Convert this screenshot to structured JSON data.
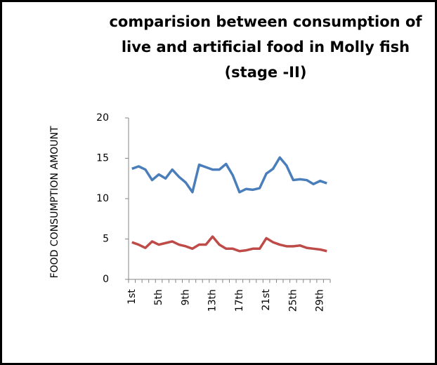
{
  "chart_data": {
    "type": "line",
    "title": "comparision between consumption of live and artificial food in Molly fish (stage -II)",
    "y_label": "FOOD CONSUMPTION AMOUNT",
    "categories": [
      "1st",
      null,
      null,
      null,
      "5th",
      null,
      null,
      null,
      "9th",
      null,
      null,
      null,
      "13th",
      null,
      null,
      null,
      "17th",
      null,
      null,
      null,
      "21st",
      null,
      null,
      null,
      "25th",
      null,
      null,
      null,
      "29th",
      null
    ],
    "series": [
      {
        "color": "#4a7ebb",
        "values": [
          13.7,
          14,
          13.6,
          12.3,
          13,
          12.5,
          13.6,
          12.7,
          12,
          10.8,
          14.2,
          13.9,
          13.6,
          13.6,
          14.3,
          12.9,
          10.8,
          11.2,
          11.1,
          11.3,
          13.1,
          13.7,
          15.1,
          14.1,
          12.3,
          12.4,
          12.3,
          11.8,
          12.2,
          11.9
        ]
      },
      {
        "color": "#be4b48",
        "values": [
          4.6,
          4.3,
          3.9,
          4.7,
          4.3,
          4.5,
          4.7,
          4.3,
          4.1,
          3.8,
          4.3,
          4.3,
          5.3,
          4.3,
          3.8,
          3.8,
          3.5,
          3.6,
          3.8,
          3.8,
          5.1,
          4.6,
          4.3,
          4.1,
          4.1,
          4.2,
          3.9,
          3.8,
          3.7,
          3.5
        ]
      }
    ],
    "ylim": [
      0,
      20
    ],
    "yticks": [
      0,
      5,
      10,
      15,
      20
    ],
    "grid": false
  }
}
